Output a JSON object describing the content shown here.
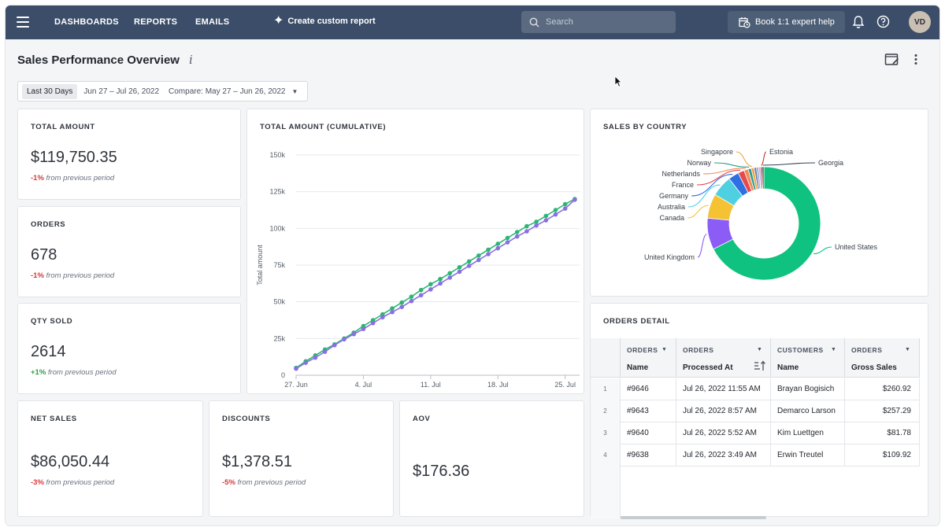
{
  "nav": {
    "items": [
      "DASHBOARDS",
      "REPORTS",
      "EMAILS"
    ],
    "create_label": "Create custom report",
    "search_placeholder": "Search",
    "book_label": "Book 1:1 expert help",
    "avatar_initials": "VD"
  },
  "page": {
    "title": "Sales Performance Overview",
    "info_glyph": "i",
    "date_preset": "Last 30 Days",
    "date_range": "Jun 27 – Jul 26, 2022",
    "compare": "Compare: May 27 – Jun 26, 2022"
  },
  "kpis": {
    "total_amount": {
      "title": "TOTAL AMOUNT",
      "value": "$119,750.35",
      "pct": "-1%",
      "suffix": "from previous period"
    },
    "orders": {
      "title": "ORDERS",
      "value": "678",
      "pct": "-1%",
      "suffix": "from previous period"
    },
    "qty_sold": {
      "title": "QTY SOLD",
      "value": "2614",
      "pct": "+1%",
      "suffix": "from previous period"
    },
    "net_sales": {
      "title": "NET SALES",
      "value": "$86,050.44",
      "pct": "-3%",
      "suffix": "from previous period"
    },
    "discounts": {
      "title": "DISCOUNTS",
      "value": "$1,378.51",
      "pct": "-5%",
      "suffix": "from previous period"
    },
    "aov": {
      "title": "AOV",
      "value": "$176.36"
    }
  },
  "colors": {
    "nav_bg": "#3b4d68",
    "current_series": "#2bb673",
    "previous_series": "#8a6fe0",
    "negative": "#d8383b",
    "positive": "#2ea043"
  },
  "chart_data": [
    {
      "type": "line",
      "title": "TOTAL AMOUNT (CUMULATIVE)",
      "ylabel": "Total amount",
      "xlabel": "",
      "ylim": [
        0,
        150000
      ],
      "yticks": [
        "0",
        "25k",
        "50k",
        "75k",
        "100k",
        "125k",
        "150k"
      ],
      "xticks": [
        "27. Jun",
        "4. Jul",
        "11. Jul",
        "18. Jul",
        "25. Jul"
      ],
      "x_days": [
        0,
        7,
        14,
        21,
        28
      ],
      "x": [
        0,
        1,
        2,
        3,
        4,
        5,
        6,
        7,
        8,
        9,
        10,
        11,
        12,
        13,
        14,
        15,
        16,
        17,
        18,
        19,
        20,
        21,
        22,
        23,
        24,
        25,
        26,
        27,
        28,
        29
      ],
      "grid": true,
      "series": [
        {
          "values": [
            5000,
            9500,
            13500,
            17500,
            21000,
            25000,
            29000,
            33500,
            37500,
            41500,
            45500,
            49500,
            53500,
            58000,
            62000,
            65500,
            69500,
            73500,
            77500,
            81500,
            85500,
            89500,
            93500,
            97500,
            101500,
            104500,
            108500,
            112500,
            116500,
            120000
          ]
        },
        {
          "values": [
            4500,
            8500,
            12000,
            16000,
            20500,
            24500,
            28000,
            31500,
            35500,
            39500,
            43000,
            46500,
            50500,
            54500,
            58500,
            62500,
            66500,
            70500,
            74500,
            78500,
            82500,
            86500,
            90500,
            94500,
            98000,
            102000,
            105500,
            109500,
            113500,
            119500
          ]
        }
      ]
    },
    {
      "type": "pie",
      "title": "SALES BY COUNTRY",
      "legend": "none",
      "slices": [
        {
          "name": "United States",
          "value": 67.5,
          "color": "#10c27f"
        },
        {
          "name": "United Kingdom",
          "value": 9.0,
          "color": "#8b5cf6"
        },
        {
          "name": "Canada",
          "value": 7.0,
          "color": "#f5c233"
        },
        {
          "name": "Australia",
          "value": 6.0,
          "color": "#4fd0e0"
        },
        {
          "name": "Germany",
          "value": 3.0,
          "color": "#2f6fe4"
        },
        {
          "name": "France",
          "value": 1.8,
          "color": "#e64a4a"
        },
        {
          "name": "Netherlands",
          "value": 1.2,
          "color": "#f08c5a"
        },
        {
          "name": "Norway",
          "value": 0.9,
          "color": "#2a9d8f"
        },
        {
          "name": "Singapore",
          "value": 0.8,
          "color": "#f2a33a"
        },
        {
          "name": "",
          "value": 0.7,
          "color": "#6b7cb8"
        },
        {
          "name": "",
          "value": 0.6,
          "color": "#9aa7b8"
        },
        {
          "name": "",
          "value": 0.5,
          "color": "#c7a4e0"
        },
        {
          "name": "Estonia",
          "value": 0.5,
          "color": "#c0392b"
        },
        {
          "name": "Georgia",
          "value": 0.5,
          "color": "#334155"
        }
      ]
    }
  ],
  "orders_detail": {
    "title": "ORDERS DETAIL",
    "columns": [
      {
        "group": "ORDERS",
        "name": "Name"
      },
      {
        "group": "ORDERS",
        "name": "Processed At"
      },
      {
        "group": "CUSTOMERS",
        "name": "Name"
      },
      {
        "group": "ORDERS",
        "name": "Gross Sales"
      }
    ],
    "rows": [
      {
        "idx": "1",
        "order": "#9646",
        "processed": "Jul 26, 2022 11:55 AM",
        "customer": "Brayan Bogisich",
        "gross": "$260.92"
      },
      {
        "idx": "2",
        "order": "#9643",
        "processed": "Jul 26, 2022 8:57 AM",
        "customer": "Demarco Larson",
        "gross": "$257.29"
      },
      {
        "idx": "3",
        "order": "#9640",
        "processed": "Jul 26, 2022 5:52 AM",
        "customer": "Kim Luettgen",
        "gross": "$81.78"
      },
      {
        "idx": "4",
        "order": "#9638",
        "processed": "Jul 26, 2022 3:49 AM",
        "customer": "Erwin Treutel",
        "gross": "$109.92"
      }
    ]
  }
}
